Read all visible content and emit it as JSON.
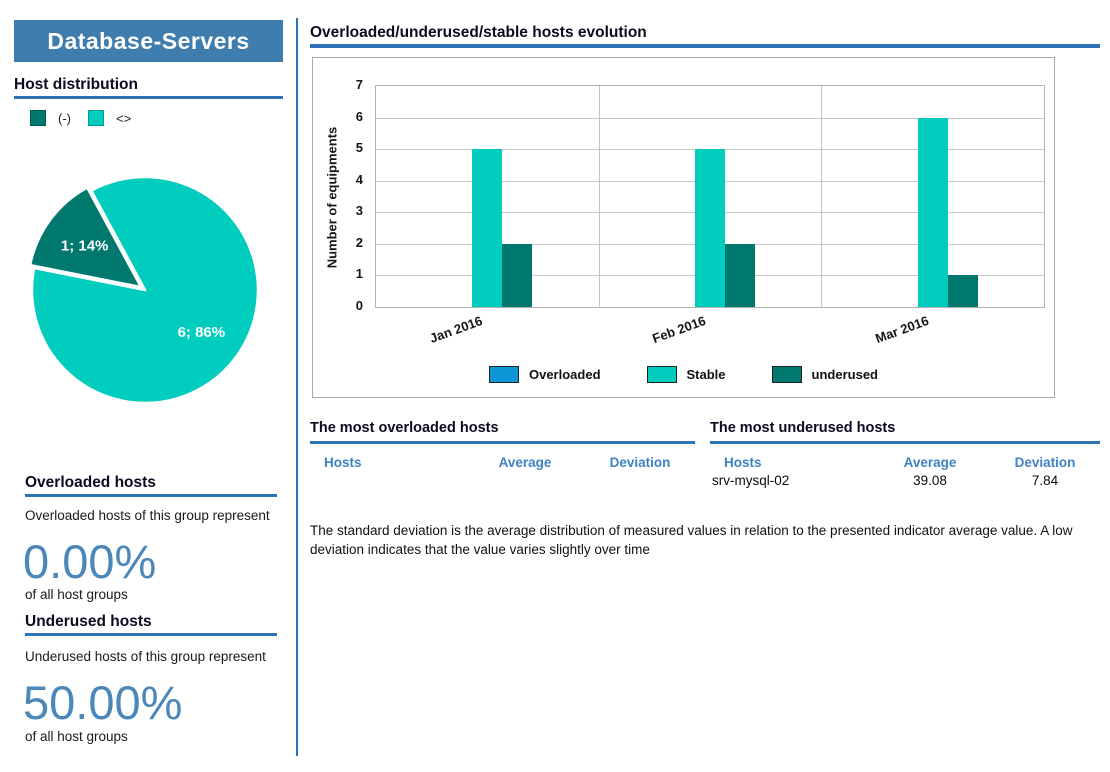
{
  "colors": {
    "accent_blue": "#3f7dae",
    "underline_blue": "#2e74b5",
    "table_header_blue": "#3f82c4",
    "percent_blue": "#4c87ba",
    "overloaded_blue": "#0d96d5",
    "stable_turquoise": "#00cdbd",
    "underused_teal": "#00786e"
  },
  "left_panel": {
    "title": "Database-Servers",
    "host_distribution_heading": "Host distribution",
    "overloaded_section": {
      "heading": "Overloaded hosts",
      "description": "Overloaded hosts of this group represent",
      "percent": "0.00%",
      "caption": "of all host groups"
    },
    "underused_section": {
      "heading": "Underused hosts",
      "description": "Underused hosts of this group represent",
      "percent": "50.00%",
      "caption": "of all host groups"
    }
  },
  "main": {
    "chart_heading": "Overloaded/underused/stable hosts evolution",
    "overloaded_table": {
      "title": "The most overloaded hosts",
      "columns": [
        "Hosts",
        "Average",
        "Deviation"
      ],
      "rows": []
    },
    "underused_table": {
      "title": "The most underused hosts",
      "columns": [
        "Hosts",
        "Average",
        "Deviation"
      ],
      "rows": [
        [
          "srv-mysql-02",
          "39.08",
          "7.84"
        ]
      ]
    },
    "footnote": "The standard deviation is the average distribution of measured values in relation to the presented indicator average value. A low  deviation indicates that the value varies slightly over time"
  },
  "chart_data": [
    {
      "type": "pie",
      "title": "Host distribution",
      "slices": [
        {
          "name": "underused",
          "legend_label": "(-)",
          "value": 1,
          "pct": 14,
          "label": "1; 14%",
          "color": "#00786e",
          "exploded": true
        },
        {
          "name": "stable",
          "legend_label": "<>",
          "value": 6,
          "pct": 86,
          "label": "6; 86%",
          "color": "#00cdbd",
          "exploded": false
        }
      ],
      "start_angle": 118.4,
      "legend_position": "top"
    },
    {
      "type": "bar",
      "title": "Overloaded/underused/stable hosts evolution",
      "categories": [
        "Jan 2016",
        "Feb 2016",
        "Mar 2016"
      ],
      "series": [
        {
          "name": "Overloaded",
          "color": "#0d96d5",
          "values": [
            0,
            0,
            0
          ]
        },
        {
          "name": "Stable",
          "color": "#00cdbd",
          "values": [
            5,
            5,
            6
          ]
        },
        {
          "name": "underused",
          "color": "#00786e",
          "values": [
            2,
            2,
            1
          ]
        }
      ],
      "xlabel": "",
      "ylabel": "Number of equipments",
      "ylim": [
        0,
        7
      ],
      "yticks": [
        0,
        1,
        2,
        3,
        4,
        5,
        6,
        7
      ],
      "grid": true,
      "legend_position": "bottom"
    }
  ]
}
